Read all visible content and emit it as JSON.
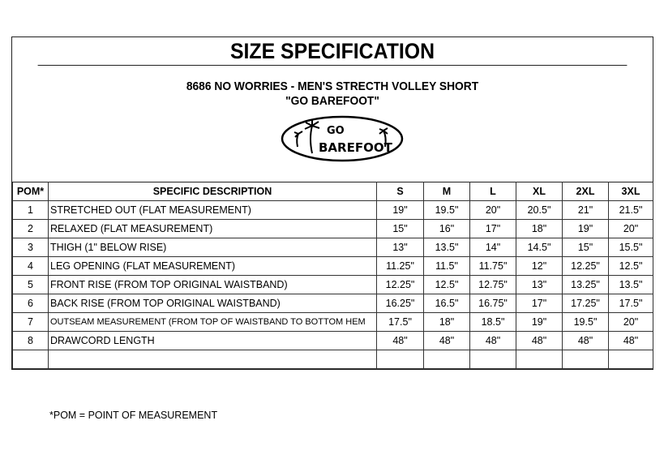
{
  "title": "SIZE SPECIFICATION",
  "product_line": "8686 NO WORRIES - MEN'S STRECTH VOLLEY SHORT",
  "product_tagline": "\"GO BAREFOOT\"",
  "logo_text": "GO BAREFOOT",
  "table": {
    "headers": [
      "POM*",
      "SPECIFIC DESCRIPTION",
      "S",
      "M",
      "L",
      "XL",
      "2XL",
      "3XL"
    ],
    "rows": [
      {
        "pom": "1",
        "desc": "STRETCHED OUT (FLAT MEASUREMENT)",
        "values": [
          "19\"",
          "19.5\"",
          "20\"",
          "20.5\"",
          "21\"",
          "21.5\""
        ]
      },
      {
        "pom": "2",
        "desc": "RELAXED (FLAT MEASUREMENT)",
        "values": [
          "15\"",
          "16\"",
          "17\"",
          "18\"",
          "19\"",
          "20\""
        ]
      },
      {
        "pom": "3",
        "desc": "THIGH (1\" BELOW RISE)",
        "values": [
          "13\"",
          "13.5\"",
          "14\"",
          "14.5\"",
          "15\"",
          "15.5\""
        ]
      },
      {
        "pom": "4",
        "desc": "LEG OPENING (FLAT MEASUREMENT)",
        "values": [
          "11.25\"",
          "11.5\"",
          "11.75\"",
          "12\"",
          "12.25\"",
          "12.5\""
        ]
      },
      {
        "pom": "5",
        "desc": "FRONT RISE (FROM TOP ORIGINAL WAISTBAND)",
        "values": [
          "12.25\"",
          "12.5\"",
          "12.75\"",
          "13\"",
          "13.25\"",
          "13.5\""
        ]
      },
      {
        "pom": "6",
        "desc": "BACK RISE (FROM TOP ORIGINAL WAISTBAND)",
        "values": [
          "16.25\"",
          "16.5\"",
          "16.75\"",
          "17\"",
          "17.25\"",
          "17.5\""
        ]
      },
      {
        "pom": "7",
        "desc": "OUTSEAM MEASUREMENT (FROM TOP OF WAISTBAND TO BOTTOM HEM",
        "values": [
          "17.5\"",
          "18\"",
          "18.5\"",
          "19\"",
          "19.5\"",
          "20\""
        ]
      },
      {
        "pom": "8",
        "desc": "DRAWCORD LENGTH",
        "values": [
          "48\"",
          "48\"",
          "48\"",
          "48\"",
          "48\"",
          "48\""
        ]
      }
    ]
  },
  "footnote": "*POM = POINT OF MEASUREMENT"
}
